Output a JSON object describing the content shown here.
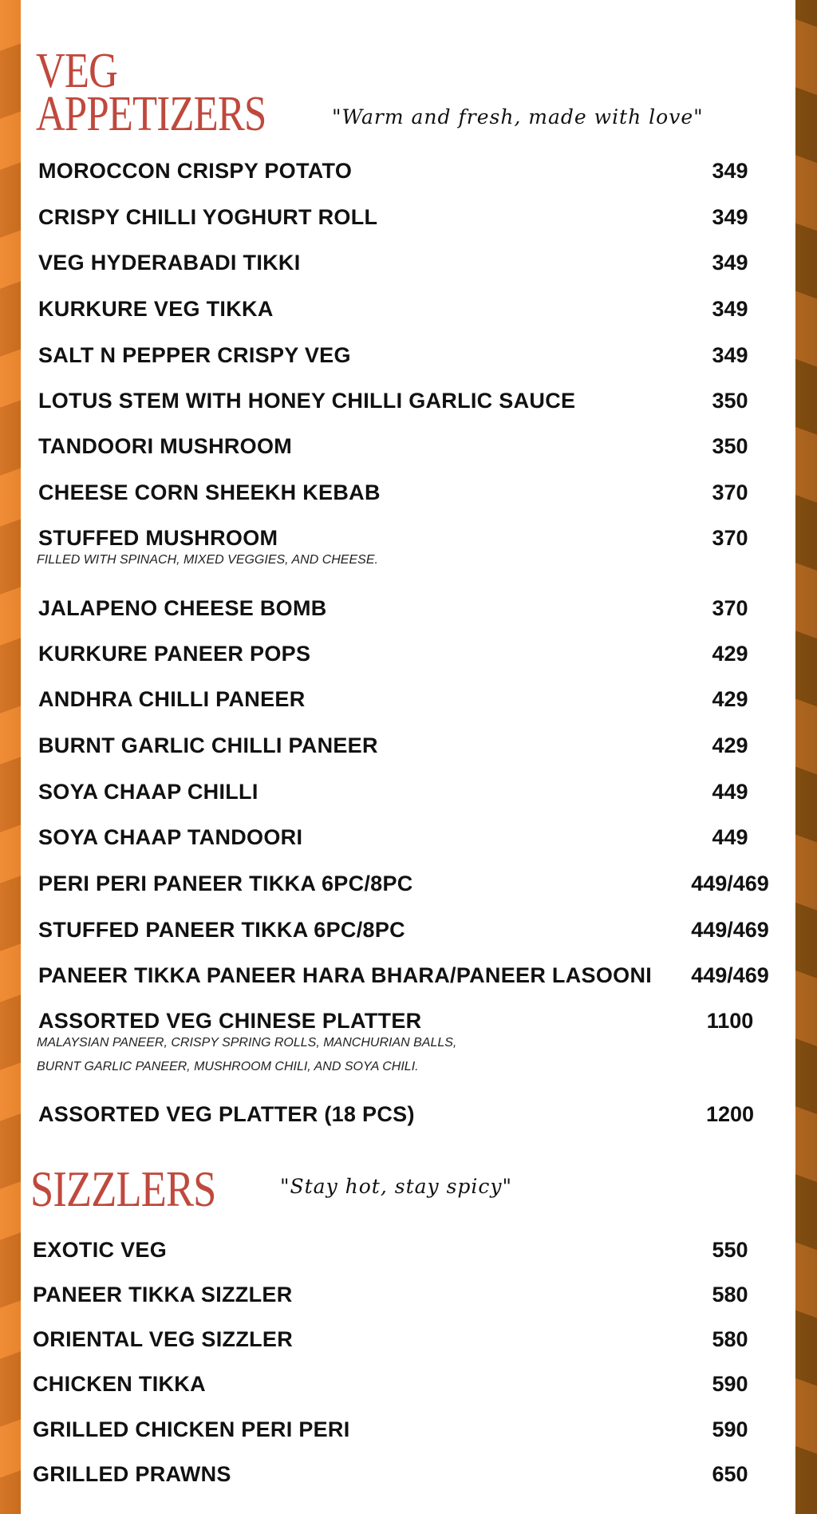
{
  "veg": {
    "title_line1": "VEG",
    "title_line2": "APPETIZERS",
    "tagline": "\"Warm and fresh, made with love\"",
    "items": [
      {
        "name": "MOROCCON CRISPY POTATO",
        "price": "349"
      },
      {
        "name": "CRISPY CHILLI YOGHURT ROLL",
        "price": "349"
      },
      {
        "name": "VEG HYDERABADI TIKKI",
        "price": "349"
      },
      {
        "name": "KURKURE VEG TIKKA",
        "price": "349"
      },
      {
        "name": "SALT N PEPPER CRISPY VEG",
        "price": "349"
      },
      {
        "name": "LOTUS STEM WITH HONEY CHILLI GARLIC SAUCE",
        "price": "350"
      },
      {
        "name": "TANDOORI MUSHROOM",
        "price": "350"
      },
      {
        "name": "CHEESE CORN SHEEKH KEBAB",
        "price": "370"
      },
      {
        "name": "STUFFED MUSHROOM",
        "price": "370",
        "desc": "FILLED WITH SPINACH, MIXED VEGGIES, AND CHEESE."
      },
      {
        "name": "JALAPENO CHEESE BOMB",
        "price": "370"
      },
      {
        "name": "KURKURE PANEER POPS",
        "price": "429"
      },
      {
        "name": "ANDHRA CHILLI PANEER",
        "price": "429"
      },
      {
        "name": "BURNT GARLIC CHILLI PANEER",
        "price": "429"
      },
      {
        "name": "SOYA CHAAP CHILLI",
        "price": "449"
      },
      {
        "name": "SOYA CHAAP TANDOORI",
        "price": "449"
      },
      {
        "name": "PERI PERI PANEER TIKKA 6PC/8PC",
        "price": "449/469"
      },
      {
        "name": "STUFFED PANEER TIKKA 6PC/8PC",
        "price": "449/469"
      },
      {
        "name": "PANEER TIKKA PANEER HARA BHARA/PANEER LASOONI",
        "price": "449/469"
      },
      {
        "name": "ASSORTED VEG CHINESE PLATTER",
        "price": "1100",
        "desc": "MALAYSIAN PANEER, CRISPY SPRING ROLLS, MANCHURIAN BALLS,",
        "desc2": "BURNT GARLIC PANEER, MUSHROOM CHILI, AND SOYA CHILI."
      },
      {
        "name": "ASSORTED VEG PLATTER (18 PCS)",
        "price": "1200"
      }
    ]
  },
  "sizzlers": {
    "title": "SIZZLERS",
    "tagline": "\"Stay hot, stay spicy\"",
    "items": [
      {
        "name": "EXOTIC VEG",
        "price": "550"
      },
      {
        "name": "PANEER TIKKA SIZZLER",
        "price": "580"
      },
      {
        "name": "ORIENTAL VEG SIZZLER",
        "price": "580"
      },
      {
        "name": "CHICKEN TIKKA",
        "price": "590"
      },
      {
        "name": "GRILLED CHICKEN PERI PERI",
        "price": "590"
      },
      {
        "name": "GRILLED PRAWNS",
        "price": "650"
      }
    ]
  },
  "colors": {
    "title": "#c0483d",
    "background_left": "#e9822f",
    "background_right": "#7a4a10"
  }
}
